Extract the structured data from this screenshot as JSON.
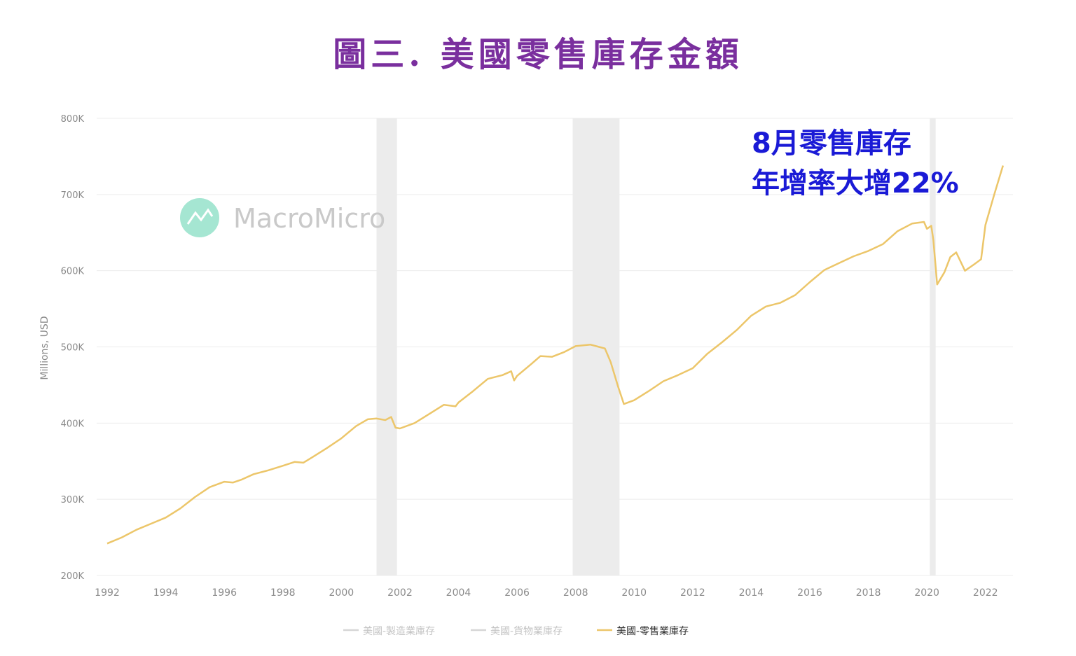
{
  "title": "圖三. 美國零售庫存金額",
  "chart_data": {
    "type": "line",
    "ylabel": "Millions, USD",
    "ylim": [
      200000,
      800000
    ],
    "yticks": [
      200000,
      300000,
      400000,
      500000,
      600000,
      700000,
      800000
    ],
    "ytick_labels": [
      "200K",
      "300K",
      "400K",
      "500K",
      "600K",
      "700K",
      "800K"
    ],
    "xlim": [
      1992.0,
      2022.7
    ],
    "xticks": [
      1992,
      1994,
      1996,
      1998,
      2000,
      2002,
      2004,
      2006,
      2008,
      2010,
      2012,
      2014,
      2016,
      2018,
      2020,
      2022
    ],
    "xtick_labels": [
      "1992",
      "1994",
      "1996",
      "1998",
      "2000",
      "2002",
      "2004",
      "2006",
      "2008",
      "2010",
      "2012",
      "2014",
      "2016",
      "2018",
      "2020",
      "2022"
    ],
    "grid": true,
    "legend_position": "bottom",
    "recessions": [
      [
        2001.2,
        2001.9
      ],
      [
        2007.9,
        2009.5
      ],
      [
        2020.1,
        2020.3
      ]
    ],
    "series": [
      {
        "name": "美國-零售業庫存",
        "color": "#ecc66a",
        "points": [
          [
            1992.0,
            242000
          ],
          [
            1992.5,
            250000
          ],
          [
            1993.0,
            260000
          ],
          [
            1993.5,
            268000
          ],
          [
            1994.0,
            276000
          ],
          [
            1994.5,
            288000
          ],
          [
            1995.0,
            303000
          ],
          [
            1995.5,
            316000
          ],
          [
            1996.0,
            323000
          ],
          [
            1996.3,
            322000
          ],
          [
            1996.6,
            326000
          ],
          [
            1997.0,
            333000
          ],
          [
            1997.5,
            338000
          ],
          [
            1998.0,
            344000
          ],
          [
            1998.4,
            349000
          ],
          [
            1998.7,
            348000
          ],
          [
            1999.0,
            355000
          ],
          [
            1999.5,
            367000
          ],
          [
            2000.0,
            380000
          ],
          [
            2000.5,
            396000
          ],
          [
            2000.9,
            405000
          ],
          [
            2001.2,
            406000
          ],
          [
            2001.5,
            404000
          ],
          [
            2001.7,
            408000
          ],
          [
            2001.85,
            394000
          ],
          [
            2002.0,
            393000
          ],
          [
            2002.5,
            400000
          ],
          [
            2003.0,
            412000
          ],
          [
            2003.5,
            424000
          ],
          [
            2003.9,
            422000
          ],
          [
            2004.0,
            427000
          ],
          [
            2004.5,
            442000
          ],
          [
            2005.0,
            458000
          ],
          [
            2005.5,
            463000
          ],
          [
            2005.8,
            468000
          ],
          [
            2005.9,
            456000
          ],
          [
            2006.0,
            462000
          ],
          [
            2006.5,
            478000
          ],
          [
            2006.8,
            488000
          ],
          [
            2007.2,
            487000
          ],
          [
            2007.6,
            493000
          ],
          [
            2008.0,
            501000
          ],
          [
            2008.5,
            503000
          ],
          [
            2008.8,
            500000
          ],
          [
            2009.0,
            498000
          ],
          [
            2009.2,
            480000
          ],
          [
            2009.45,
            448000
          ],
          [
            2009.65,
            425000
          ],
          [
            2010.0,
            430000
          ],
          [
            2010.5,
            442000
          ],
          [
            2011.0,
            455000
          ],
          [
            2011.5,
            463000
          ],
          [
            2012.0,
            472000
          ],
          [
            2012.5,
            491000
          ],
          [
            2013.0,
            506000
          ],
          [
            2013.5,
            522000
          ],
          [
            2014.0,
            541000
          ],
          [
            2014.5,
            553000
          ],
          [
            2015.0,
            558000
          ],
          [
            2015.5,
            568000
          ],
          [
            2016.0,
            585000
          ],
          [
            2016.5,
            601000
          ],
          [
            2017.0,
            610000
          ],
          [
            2017.5,
            619000
          ],
          [
            2018.0,
            626000
          ],
          [
            2018.5,
            635000
          ],
          [
            2019.0,
            652000
          ],
          [
            2019.5,
            662000
          ],
          [
            2019.9,
            664000
          ],
          [
            2020.0,
            655000
          ],
          [
            2020.15,
            659000
          ],
          [
            2020.22,
            640000
          ],
          [
            2020.35,
            582000
          ],
          [
            2020.6,
            598000
          ],
          [
            2020.8,
            618000
          ],
          [
            2021.0,
            624000
          ],
          [
            2021.3,
            600000
          ],
          [
            2021.6,
            608000
          ],
          [
            2021.85,
            615000
          ],
          [
            2022.0,
            660000
          ],
          [
            2022.3,
            700000
          ],
          [
            2022.6,
            738000
          ]
        ]
      }
    ],
    "legend": [
      {
        "label": "美國-製造業庫存",
        "color": "#d6d6d6",
        "text_color": "#c4c4c4"
      },
      {
        "label": "美國-貨物業庫存",
        "color": "#d6d6d6",
        "text_color": "#c4c4c4"
      },
      {
        "label": "美國-零售業庫存",
        "color": "#ecc66a",
        "text_color": "#333333"
      }
    ],
    "annotation": {
      "line1": "8月零售庫存",
      "line2": "年增率大增22%"
    },
    "watermark": "MacroMicro"
  }
}
